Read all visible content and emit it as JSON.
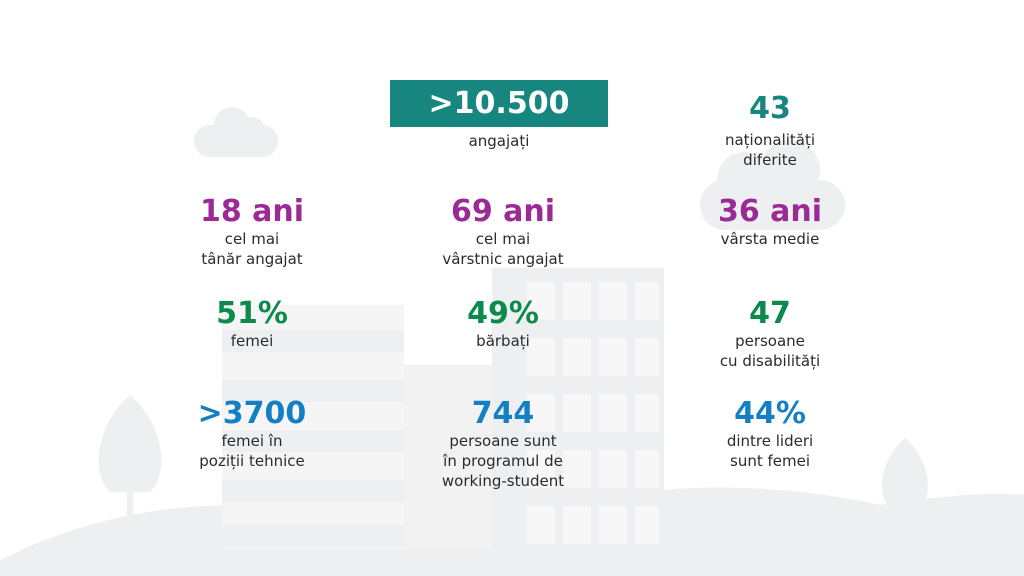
{
  "colors": {
    "teal": "#17867f",
    "purple": "#9b2a97",
    "green": "#0c8a4b",
    "blue": "#1480c3",
    "text": "#2b2b2b",
    "illustration": "#eeeff1"
  },
  "hero": {
    "value": ">10.500",
    "label": "angajați"
  },
  "stats": {
    "nationalities": {
      "value": "43",
      "label": "naționalități\n diferite"
    },
    "youngest": {
      "value": "18 ani",
      "label": "cel mai\ntânăr angajat"
    },
    "oldest": {
      "value": "69 ani",
      "label": "cel mai\nvârstnic angajat"
    },
    "average_age": {
      "value": "36 ani",
      "label": "vârsta medie"
    },
    "women_pct": {
      "value": "51%",
      "label": "femei"
    },
    "men_pct": {
      "value": "49%",
      "label": "bărbați"
    },
    "disabilities": {
      "value": "47",
      "label": "persoane\ncu disabilități"
    },
    "women_tech": {
      "value": ">3700",
      "label": "femei în\npoziții tehnice"
    },
    "working_student": {
      "value": "744",
      "label": "persoane sunt\nîn programul de\nworking-student"
    },
    "women_leaders": {
      "value": "44%",
      "label": "dintre lideri\nsunt femei"
    }
  }
}
